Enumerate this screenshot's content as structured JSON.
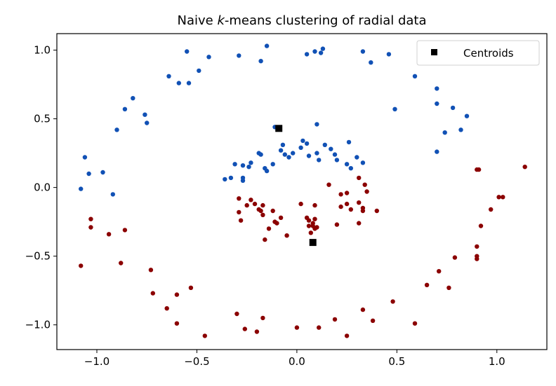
{
  "chart_data": {
    "type": "scatter",
    "title_prefix": "Naive ",
    "title_var": "k",
    "title_suffix": "-means clustering of radial data",
    "xlabel": "",
    "ylabel": "",
    "xlim": [
      -1.2,
      1.25
    ],
    "ylim": [
      -1.18,
      1.12
    ],
    "xticks": [
      -1.0,
      -0.5,
      0.0,
      0.5,
      1.0
    ],
    "xtick_labels": [
      "−1.0",
      "−0.5",
      "0.0",
      "0.5",
      "1.0"
    ],
    "yticks": [
      -1.0,
      -0.5,
      0.0,
      0.5,
      1.0
    ],
    "ytick_labels": [
      "−1.0",
      "−0.5",
      "0.0",
      "0.5",
      "1.0"
    ],
    "grid": false,
    "legend": {
      "placement": "top-right",
      "label": "Centroids"
    },
    "colors": {
      "cluster_0": "#1151b5",
      "cluster_1": "#8b0000",
      "centroid": "#000000"
    },
    "series": [
      {
        "cluster": "cluster_0",
        "points": [
          [
            -0.55,
            0.99
          ],
          [
            -0.44,
            0.95
          ],
          [
            -0.29,
            0.96
          ],
          [
            -0.18,
            0.92
          ],
          [
            -0.15,
            1.03
          ],
          [
            0.05,
            0.97
          ],
          [
            0.09,
            0.99
          ],
          [
            0.12,
            0.98
          ],
          [
            0.13,
            1.01
          ],
          [
            0.33,
            0.99
          ],
          [
            0.37,
            0.91
          ],
          [
            0.46,
            0.97
          ],
          [
            -0.64,
            0.81
          ],
          [
            -0.59,
            0.76
          ],
          [
            -0.54,
            0.76
          ],
          [
            -0.49,
            0.85
          ],
          [
            -0.82,
            0.65
          ],
          [
            -0.86,
            0.57
          ],
          [
            -0.9,
            0.42
          ],
          [
            -0.76,
            0.53
          ],
          [
            -0.75,
            0.47
          ],
          [
            0.59,
            0.81
          ],
          [
            0.7,
            0.72
          ],
          [
            0.7,
            0.61
          ],
          [
            0.78,
            0.58
          ],
          [
            0.85,
            0.52
          ],
          [
            0.74,
            0.4
          ],
          [
            0.82,
            0.42
          ],
          [
            0.7,
            0.26
          ],
          [
            0.49,
            0.57
          ],
          [
            -1.06,
            0.22
          ],
          [
            -1.04,
            0.1
          ],
          [
            -1.08,
            -0.01
          ],
          [
            -0.97,
            0.11
          ],
          [
            -0.92,
            -0.05
          ],
          [
            -0.11,
            0.44
          ],
          [
            0.1,
            0.46
          ],
          [
            -0.08,
            0.27
          ],
          [
            -0.07,
            0.31
          ],
          [
            -0.06,
            0.24
          ],
          [
            -0.04,
            0.22
          ],
          [
            -0.02,
            0.25
          ],
          [
            0.02,
            0.29
          ],
          [
            0.03,
            0.34
          ],
          [
            0.05,
            0.32
          ],
          [
            0.06,
            0.23
          ],
          [
            0.1,
            0.25
          ],
          [
            0.11,
            0.2
          ],
          [
            0.14,
            0.31
          ],
          [
            0.17,
            0.28
          ],
          [
            0.19,
            0.24
          ],
          [
            0.2,
            0.2
          ],
          [
            0.25,
            0.17
          ],
          [
            0.26,
            0.33
          ],
          [
            0.27,
            0.14
          ],
          [
            0.3,
            0.22
          ],
          [
            0.33,
            0.18
          ],
          [
            -0.36,
            0.06
          ],
          [
            -0.33,
            0.07
          ],
          [
            -0.31,
            0.17
          ],
          [
            -0.27,
            0.05
          ],
          [
            -0.27,
            0.16
          ],
          [
            -0.27,
            0.07
          ],
          [
            -0.24,
            0.15
          ],
          [
            -0.23,
            0.18
          ],
          [
            -0.19,
            0.25
          ],
          [
            -0.18,
            0.24
          ],
          [
            -0.16,
            0.14
          ],
          [
            -0.15,
            0.12
          ],
          [
            -0.12,
            0.17
          ]
        ]
      },
      {
        "cluster": "cluster_1",
        "points": [
          [
            -1.03,
            -0.23
          ],
          [
            -1.03,
            -0.29
          ],
          [
            -0.94,
            -0.34
          ],
          [
            -0.86,
            -0.31
          ],
          [
            -1.08,
            -0.57
          ],
          [
            -0.88,
            -0.55
          ],
          [
            -0.73,
            -0.6
          ],
          [
            -0.72,
            -0.77
          ],
          [
            -0.65,
            -0.88
          ],
          [
            -0.6,
            -0.78
          ],
          [
            -0.53,
            -0.73
          ],
          [
            -0.6,
            -0.99
          ],
          [
            -0.46,
            -1.08
          ],
          [
            -0.3,
            -0.92
          ],
          [
            -0.26,
            -1.03
          ],
          [
            -0.2,
            -1.05
          ],
          [
            -0.17,
            -0.95
          ],
          [
            0.0,
            -1.02
          ],
          [
            0.11,
            -1.02
          ],
          [
            0.19,
            -0.96
          ],
          [
            0.25,
            -1.08
          ],
          [
            0.33,
            -0.89
          ],
          [
            0.38,
            -0.97
          ],
          [
            0.48,
            -0.83
          ],
          [
            0.59,
            -0.99
          ],
          [
            0.65,
            -0.71
          ],
          [
            0.71,
            -0.61
          ],
          [
            0.76,
            -0.73
          ],
          [
            0.79,
            -0.51
          ],
          [
            0.9,
            -0.43
          ],
          [
            0.9,
            -0.5
          ],
          [
            0.9,
            -0.52
          ],
          [
            0.92,
            -0.28
          ],
          [
            0.97,
            -0.16
          ],
          [
            1.01,
            -0.07
          ],
          [
            1.03,
            -0.07
          ],
          [
            0.9,
            0.13
          ],
          [
            0.91,
            0.13
          ],
          [
            1.14,
            0.15
          ],
          [
            -0.29,
            -0.08
          ],
          [
            -0.29,
            -0.18
          ],
          [
            -0.28,
            -0.24
          ],
          [
            -0.25,
            -0.13
          ],
          [
            -0.23,
            -0.09
          ],
          [
            -0.21,
            -0.12
          ],
          [
            -0.19,
            -0.16
          ],
          [
            -0.18,
            -0.17
          ],
          [
            -0.17,
            -0.13
          ],
          [
            -0.17,
            -0.2
          ],
          [
            -0.16,
            -0.38
          ],
          [
            -0.14,
            -0.3
          ],
          [
            -0.12,
            -0.17
          ],
          [
            -0.11,
            -0.25
          ],
          [
            -0.1,
            -0.26
          ],
          [
            -0.08,
            -0.22
          ],
          [
            -0.05,
            -0.35
          ],
          [
            0.02,
            -0.12
          ],
          [
            0.05,
            -0.22
          ],
          [
            0.06,
            -0.28
          ],
          [
            0.06,
            -0.24
          ],
          [
            0.07,
            -0.33
          ],
          [
            0.08,
            -0.28
          ],
          [
            0.09,
            -0.3
          ],
          [
            0.08,
            -0.26
          ],
          [
            0.09,
            -0.23
          ],
          [
            0.09,
            -0.13
          ],
          [
            0.1,
            -0.29
          ],
          [
            0.16,
            0.02
          ],
          [
            0.2,
            -0.27
          ],
          [
            0.22,
            -0.05
          ],
          [
            0.22,
            -0.14
          ],
          [
            0.25,
            -0.04
          ],
          [
            0.25,
            -0.12
          ],
          [
            0.27,
            -0.16
          ],
          [
            0.31,
            -0.11
          ],
          [
            0.31,
            -0.26
          ],
          [
            0.31,
            0.07
          ],
          [
            0.33,
            -0.15
          ],
          [
            0.33,
            -0.17
          ],
          [
            0.34,
            0.02
          ],
          [
            0.35,
            -0.03
          ],
          [
            0.4,
            -0.17
          ]
        ]
      }
    ],
    "centroids": [
      [
        -0.09,
        0.43
      ],
      [
        0.08,
        -0.4
      ]
    ]
  }
}
